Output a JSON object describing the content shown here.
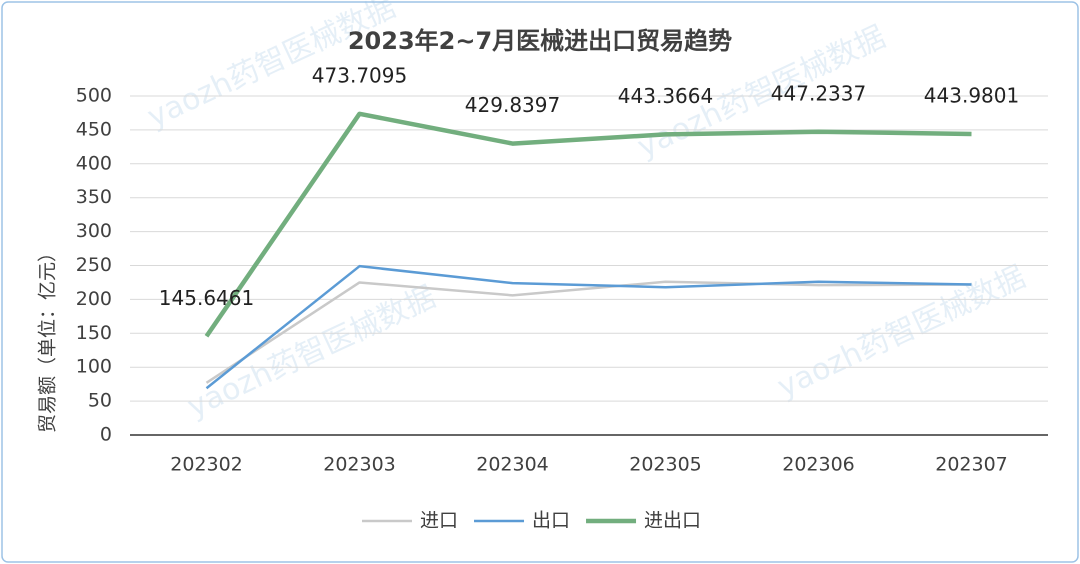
{
  "chart_data": {
    "type": "line",
    "title": "2023年2~7月医械进出口贸易趋势",
    "y_label": "贸易额（单位：亿元）",
    "watermark": "yaozh药智医械数据",
    "categories": [
      "202302",
      "202303",
      "202304",
      "202305",
      "202306",
      "202307"
    ],
    "series": [
      {
        "name": "进口",
        "color": "#c9c9c9",
        "width": 2.5,
        "values": [
          77,
          225,
          206,
          226,
          221,
          222
        ]
      },
      {
        "name": "出口",
        "color": "#5b9bd5",
        "width": 2.5,
        "values": [
          69,
          249,
          224,
          218,
          226,
          222
        ]
      },
      {
        "name": "进出口",
        "color": "#72ae7e",
        "width": 4.5,
        "values": [
          145.6461,
          473.7095,
          429.8397,
          443.3664,
          447.2337,
          443.9801
        ],
        "show_labels": true
      }
    ],
    "ylim": [
      0,
      500
    ],
    "yticks": [
      0,
      50,
      100,
      150,
      200,
      250,
      300,
      350,
      400,
      450,
      500
    ],
    "grid": true,
    "legend": "bottom"
  }
}
